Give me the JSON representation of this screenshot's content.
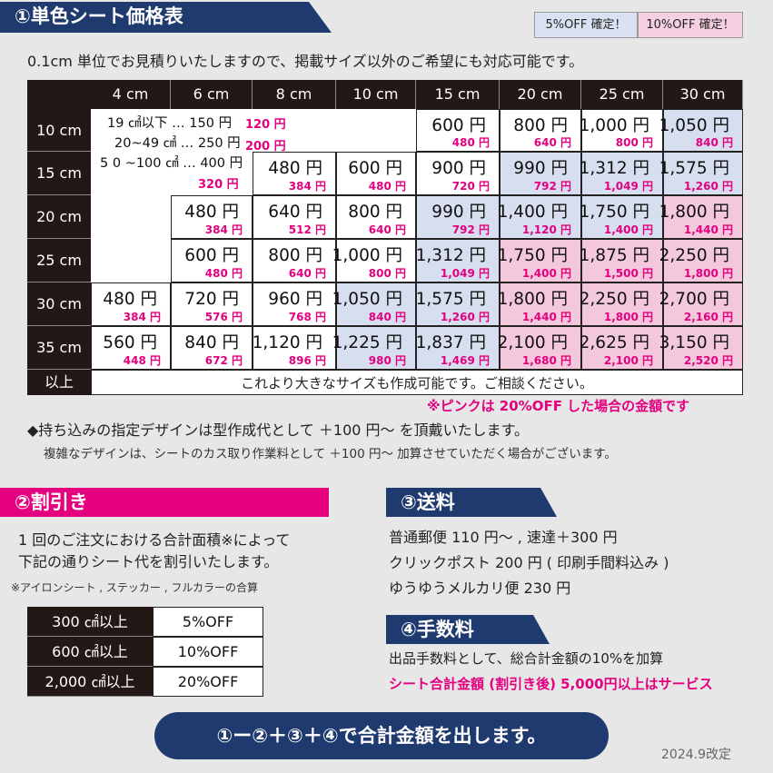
{
  "header": {
    "title": "①単色シート価格表",
    "badges": [
      {
        "label": "5%OFF 確定！",
        "color": "#d9e1f2"
      },
      {
        "label": "10%OFF 確定！",
        "color": "#f6cfe0"
      }
    ],
    "intro": "0.1cm 単位でお見積りいたしますので、掲載サイズ以外のご希望にも対応可能です。"
  },
  "table": {
    "columns": [
      "4 cm",
      "6 cm",
      "8 cm",
      "10 cm",
      "15 cm",
      "20 cm",
      "25 cm",
      "30 cm"
    ],
    "small_sizes": [
      {
        "size": "19 ㎠以下 … 150 円",
        "discount": "120 円"
      },
      {
        "size": "20~49 ㎠ … 250 円",
        "discount": "200 円"
      },
      {
        "size": "5 0 ~100 ㎠ … 400 円",
        "discount": "320 円"
      }
    ],
    "rows": [
      {
        "label": "10 cm",
        "cells": [
          null,
          null,
          null,
          null,
          {
            "price": "600 円",
            "discount": "480 円",
            "color": "#ffffff"
          },
          {
            "price": "800 円",
            "discount": "640 円",
            "color": "#ffffff"
          },
          {
            "price": "1,000 円",
            "discount": "800 円",
            "color": "#ffffff"
          },
          {
            "price": "1,050 円",
            "discount": "840 円",
            "color": "#d6def0"
          }
        ]
      },
      {
        "label": "15 cm",
        "cells": [
          null,
          null,
          {
            "price": "480 円",
            "discount": "384 円",
            "color": "#ffffff"
          },
          {
            "price": "600 円",
            "discount": "480 円",
            "color": "#ffffff"
          },
          {
            "price": "900 円",
            "discount": "720 円",
            "color": "#ffffff"
          },
          {
            "price": "990 円",
            "discount": "792 円",
            "color": "#d6def0"
          },
          {
            "price": "1,312 円",
            "discount": "1,049 円",
            "color": "#d6def0"
          },
          {
            "price": "1,575 円",
            "discount": "1,260 円",
            "color": "#d6def0"
          }
        ]
      },
      {
        "label": "20 cm",
        "cells": [
          null,
          {
            "price": "480 円",
            "discount": "384 円",
            "color": "#ffffff"
          },
          {
            "price": "640 円",
            "discount": "512 円",
            "color": "#ffffff"
          },
          {
            "price": "800 円",
            "discount": "640 円",
            "color": "#ffffff"
          },
          {
            "price": "990 円",
            "discount": "792 円",
            "color": "#d6def0"
          },
          {
            "price": "1,400 円",
            "discount": "1,120 円",
            "color": "#d6def0"
          },
          {
            "price": "1,750 円",
            "discount": "1,400 円",
            "color": "#d6def0"
          },
          {
            "price": "1,800 円",
            "discount": "1,440 円",
            "color": "#f4c8dc"
          }
        ]
      },
      {
        "label": "25 cm",
        "cells": [
          null,
          {
            "price": "600 円",
            "discount": "480 円",
            "color": "#ffffff"
          },
          {
            "price": "800 円",
            "discount": "640 円",
            "color": "#ffffff"
          },
          {
            "price": "1,000 円",
            "discount": "800 円",
            "color": "#ffffff"
          },
          {
            "price": "1,312 円",
            "discount": "1,049 円",
            "color": "#d6def0"
          },
          {
            "price": "1,750 円",
            "discount": "1,400 円",
            "color": "#f4c8dc"
          },
          {
            "price": "1,875 円",
            "discount": "1,500 円",
            "color": "#f4c8dc"
          },
          {
            "price": "2,250 円",
            "discount": "1,800 円",
            "color": "#f4c8dc"
          }
        ]
      },
      {
        "label": "30 cm",
        "cells": [
          {
            "price": "480 円",
            "discount": "384 円",
            "color": "#ffffff"
          },
          {
            "price": "720 円",
            "discount": "576 円",
            "color": "#ffffff"
          },
          {
            "price": "960 円",
            "discount": "768 円",
            "color": "#ffffff"
          },
          {
            "price": "1,050 円",
            "discount": "840 円",
            "color": "#d6def0"
          },
          {
            "price": "1,575 円",
            "discount": "1,260 円",
            "color": "#d6def0"
          },
          {
            "price": "1,800 円",
            "discount": "1,440 円",
            "color": "#f4c8dc"
          },
          {
            "price": "2,250 円",
            "discount": "1,800 円",
            "color": "#f4c8dc"
          },
          {
            "price": "2,700 円",
            "discount": "2,160 円",
            "color": "#f4c8dc"
          }
        ]
      },
      {
        "label": "35 cm",
        "cells": [
          {
            "price": "560 円",
            "discount": "448 円",
            "color": "#ffffff"
          },
          {
            "price": "840 円",
            "discount": "672 円",
            "color": "#ffffff"
          },
          {
            "price": "1,120 円",
            "discount": "896 円",
            "color": "#ffffff"
          },
          {
            "price": "1,225 円",
            "discount": "980 円",
            "color": "#d6def0"
          },
          {
            "price": "1,837 円",
            "discount": "1,469 円",
            "color": "#d6def0"
          },
          {
            "price": "2,100 円",
            "discount": "1,680 円",
            "color": "#f4c8dc"
          },
          {
            "price": "2,625 円",
            "discount": "2,100 円",
            "color": "#f4c8dc"
          },
          {
            "price": "3,150 円",
            "discount": "2,520 円",
            "color": "#f4c8dc"
          }
        ]
      }
    ],
    "last_row": {
      "label": "以上",
      "text": "これより大きなサイズも作成可能です。ご相談ください。"
    }
  },
  "notes": {
    "pink": "※ピンクは 20%OFF した場合の金額です",
    "design": "◆持ち込みの指定デザインは型作成代として ＋100 円～ を頂戴いたします。",
    "complex": "複雑なデザインは、シートのカス取り作業料として ＋100 円～ 加算させていただく場合がございます。"
  },
  "discount": {
    "title": "②割引き",
    "lines": [
      "1 回のご注文における合計面積※によって",
      "下記の通りシート代を割引いたします。"
    ],
    "note": "※アイロンシート , ステッカー , フルカラーの合算",
    "rows": [
      [
        "300 ㎠以上",
        "5%OFF"
      ],
      [
        "600 ㎠以上",
        "10%OFF"
      ],
      [
        "2,000 ㎠以上",
        "20%OFF"
      ]
    ]
  },
  "shipping": {
    "title": "③送料",
    "lines": [
      "普通郵便 110 円～ , 速達＋300 円",
      "クリックポスト 200 円 ( 印刷手間料込み )",
      "ゆうゆうメルカリ便 230 円"
    ]
  },
  "fee": {
    "title": "④手数料",
    "line": "出品手数料として、総合計金額の10%を加算",
    "service": "シート合計金額 (割引き後) 5,000円以上はサービス"
  },
  "footer": {
    "formula": "①ー②＋③＋④で合計金額を出します。",
    "revision": "2024.9改定"
  }
}
